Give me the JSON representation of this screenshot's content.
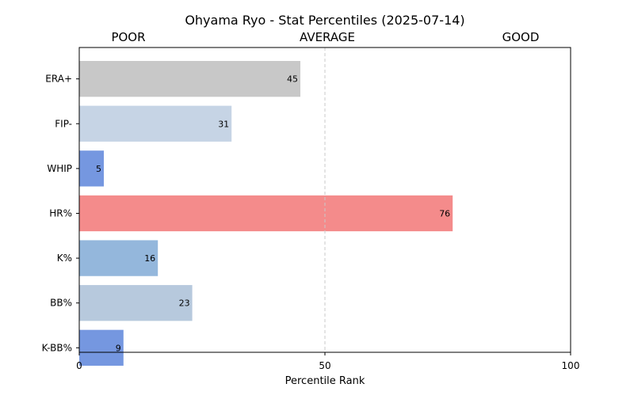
{
  "chart_data": {
    "type": "bar",
    "orientation": "horizontal",
    "title": "Ohyama Ryo - Stat Percentiles (2025-07-14)",
    "xlabel": "Percentile Rank",
    "ylabel": "",
    "xlim": [
      0,
      100
    ],
    "xticks": [
      "0",
      "50",
      "100"
    ],
    "categories": [
      "ERA+",
      "FIP-",
      "WHIP",
      "HR%",
      "K%",
      "BB%",
      "K-BB%"
    ],
    "values": [
      45,
      31,
      5,
      76,
      16,
      23,
      9
    ],
    "value_labels": [
      "45",
      "31",
      "5",
      "76",
      "16",
      "23",
      "9"
    ],
    "bar_colors": [
      "#c8c8c8",
      "#c6d4e5",
      "#7597e0",
      "#f48b8b",
      "#94b7dc",
      "#b7c9dd",
      "#7597e0"
    ],
    "reference_line": {
      "x": 50,
      "style": "dashed",
      "color": "#c8c8c8"
    },
    "scale_labels": {
      "poor": "POOR",
      "average": "AVERAGE",
      "good": "GOOD"
    },
    "grid": false,
    "legend": "none"
  }
}
